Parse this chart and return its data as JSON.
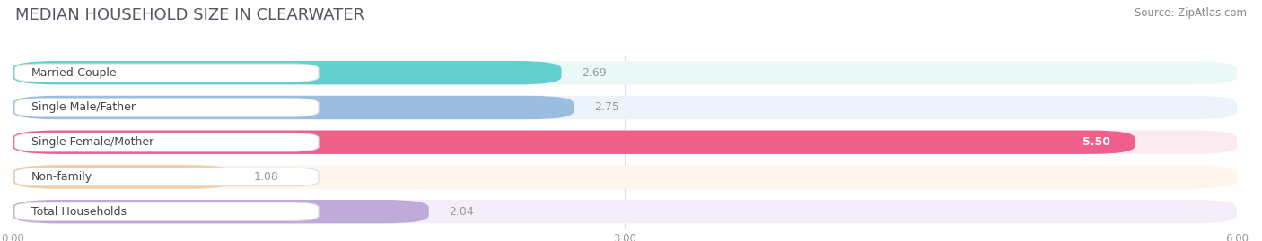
{
  "title": "MEDIAN HOUSEHOLD SIZE IN CLEARWATER",
  "source": "Source: ZipAtlas.com",
  "categories": [
    "Married-Couple",
    "Single Male/Father",
    "Single Female/Mother",
    "Non-family",
    "Total Households"
  ],
  "values": [
    2.69,
    2.75,
    5.5,
    1.08,
    2.04
  ],
  "bar_colors": [
    "#62cece",
    "#9bbde0",
    "#ee5f8a",
    "#f5c99a",
    "#c0aad8"
  ],
  "bar_bg_colors": [
    "#eaf8f8",
    "#edf3fb",
    "#fceaf1",
    "#fef5ec",
    "#f3eef9"
  ],
  "xlim": [
    0,
    6.0
  ],
  "xticks": [
    0.0,
    3.0,
    6.0
  ],
  "xtick_labels": [
    "0.00",
    "3.00",
    "6.00"
  ],
  "value_color_normal": "#999999",
  "value_color_highlight": "#ffffff",
  "title_fontsize": 13,
  "label_fontsize": 9,
  "value_fontsize": 9,
  "source_fontsize": 8.5,
  "title_color": "#555566",
  "source_color": "#888888"
}
